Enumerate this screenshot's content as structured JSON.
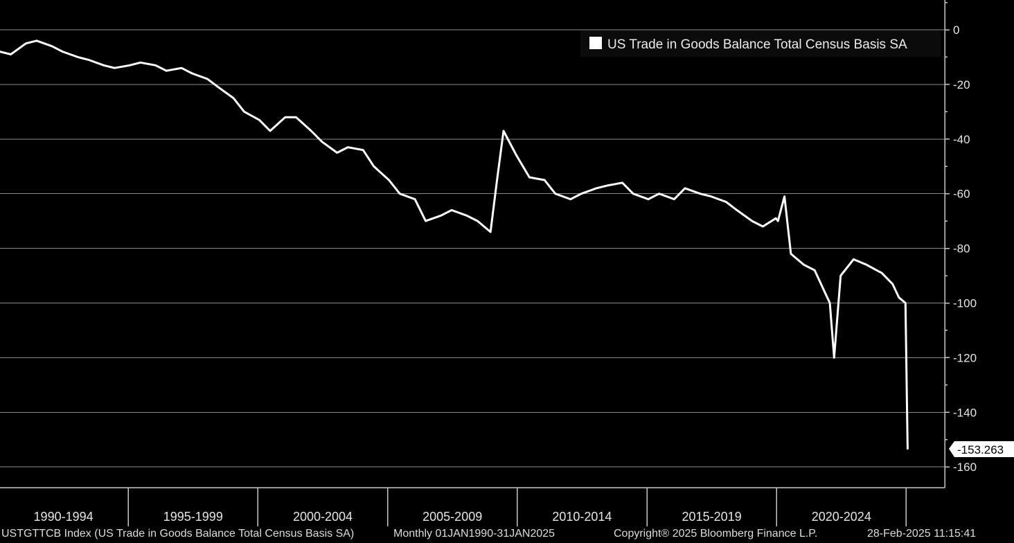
{
  "chart_data": {
    "type": "line",
    "title": "",
    "xlabel": "",
    "ylabel": "",
    "ylim": [
      -168,
      11
    ],
    "xlim": [
      "1990-01",
      "2025-06"
    ],
    "y_ticks": [
      0,
      -20,
      -40,
      -60,
      -80,
      -100,
      -120,
      -140,
      -160
    ],
    "x_ticks": [
      "1990-1994",
      "1995-1999",
      "2000-2004",
      "2005-2009",
      "2010-2014",
      "2015-2019",
      "2020-2024"
    ],
    "grid": true,
    "legend": {
      "position": "top-right",
      "entries": [
        "US Trade in Goods Balance Total Census Basis SA"
      ]
    },
    "last_value_label": "-153.263",
    "series": [
      {
        "name": "US Trade in Goods Balance Total Census Basis SA",
        "color": "#ffffff",
        "x": [
          "1990-01",
          "1990-06",
          "1991-01",
          "1991-06",
          "1992-01",
          "1992-06",
          "1993-01",
          "1993-06",
          "1994-01",
          "1994-06",
          "1995-01",
          "1995-06",
          "1996-01",
          "1996-06",
          "1997-01",
          "1997-06",
          "1998-01",
          "1998-06",
          "1999-01",
          "1999-06",
          "2000-01",
          "2000-06",
          "2001-01",
          "2001-06",
          "2002-01",
          "2002-06",
          "2003-01",
          "2003-06",
          "2004-01",
          "2004-06",
          "2005-01",
          "2005-06",
          "2006-01",
          "2006-06",
          "2007-01",
          "2007-06",
          "2008-01",
          "2008-06",
          "2008-12",
          "2009-03",
          "2009-06",
          "2009-12",
          "2010-06",
          "2011-01",
          "2011-06",
          "2012-01",
          "2012-06",
          "2013-01",
          "2013-06",
          "2014-01",
          "2014-06",
          "2015-01",
          "2015-06",
          "2016-01",
          "2016-06",
          "2017-01",
          "2017-06",
          "2018-01",
          "2018-06",
          "2019-01",
          "2019-06",
          "2019-12",
          "2020-01",
          "2020-04",
          "2020-07",
          "2021-01",
          "2021-06",
          "2022-01",
          "2022-03",
          "2022-06",
          "2022-12",
          "2023-06",
          "2024-01",
          "2024-06",
          "2024-09",
          "2024-12",
          "2025-01"
        ],
        "values": [
          -8,
          -9,
          -5,
          -4,
          -6,
          -8,
          -10,
          -11,
          -13,
          -14,
          -13,
          -12,
          -13,
          -15,
          -14,
          -16,
          -18,
          -21,
          -25,
          -30,
          -33,
          -37,
          -32,
          -32,
          -37,
          -41,
          -45,
          -43,
          -44,
          -50,
          -55,
          -60,
          -62,
          -70,
          -68,
          -66,
          -68,
          -70,
          -74,
          -55,
          -37,
          -46,
          -54,
          -55,
          -60,
          -62,
          -60,
          -58,
          -57,
          -56,
          -60,
          -62,
          -60,
          -62,
          -58,
          -60,
          -61,
          -63,
          -66,
          -70,
          -72,
          -69,
          -70,
          -61,
          -82,
          -86,
          -88,
          -100,
          -120,
          -90,
          -84,
          -86,
          -89,
          -93,
          -98,
          -100,
          -153.263
        ]
      }
    ]
  },
  "footer": {
    "ticker": "USTGTTCB Index (US Trade in Goods Balance Total Census Basis SA)",
    "range": "Monthly 01JAN1990-31JAN2025",
    "copyright": "Copyright® 2025 Bloomberg Finance L.P.",
    "timestamp": "28-Feb-2025 11:15:41"
  }
}
